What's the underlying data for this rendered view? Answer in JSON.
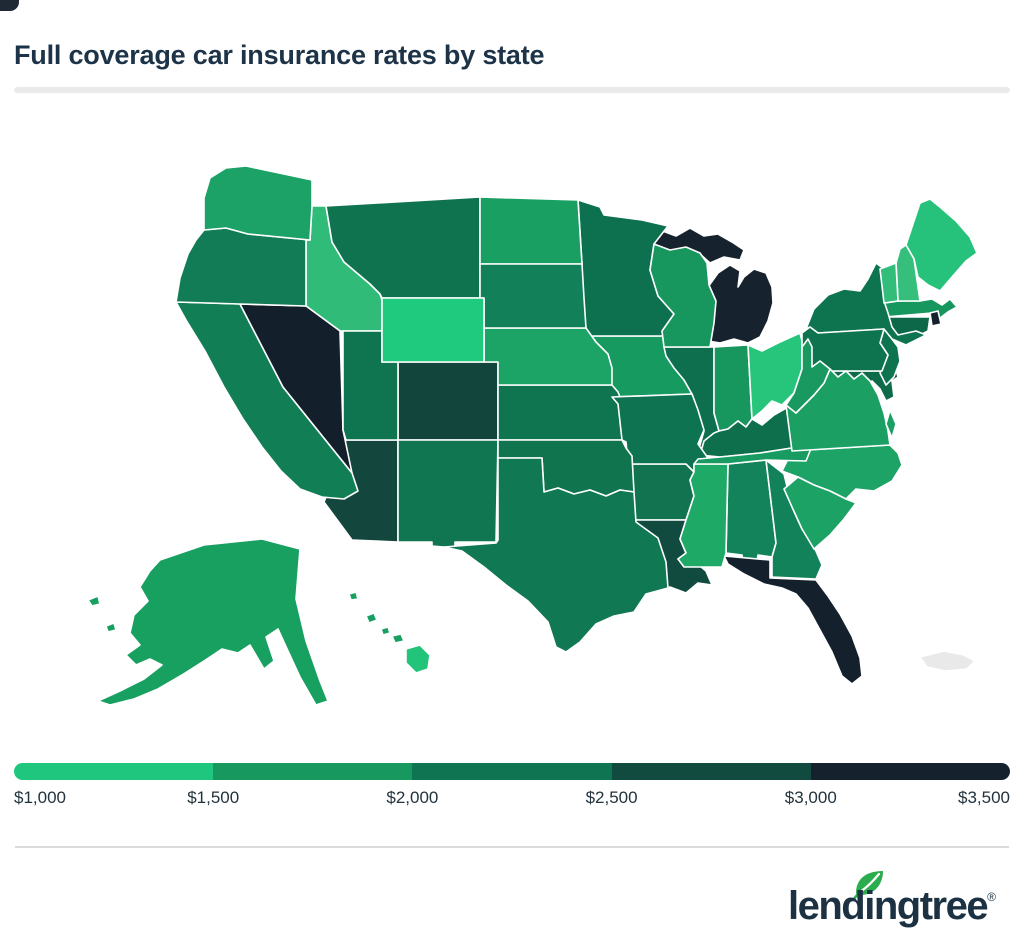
{
  "page": {
    "title": "Full coverage car insurance rates by state",
    "corner_artifact_color": "#1F2935",
    "background_color": "#FFFFFF",
    "title_color": "#1D3348",
    "divider_color": "#EAEAEA"
  },
  "logo": {
    "text": "lendingtree",
    "trademark": "®",
    "text_color": "#1C3242",
    "leaf_color": "#2BAD4F"
  },
  "chart_data": {
    "type": "choropleth",
    "title": "Full coverage car insurance rates by state",
    "region": "United States",
    "legend": {
      "tick_labels": [
        "$1,000",
        "$1,500",
        "$2,000",
        "$2,500",
        "$3,000",
        "$3,500"
      ],
      "segment_colors": [
        "#1FC77E",
        "#17985E",
        "#0F7451",
        "#114B40",
        "#15222E"
      ],
      "segment_ranges": [
        "$1,000–$1,500",
        "$1,500–$2,000",
        "$2,000–$2,500",
        "$2,500–$3,000",
        "$3,000–$3,500"
      ],
      "position": "bottom"
    },
    "other_regions": [
      {
        "name": "Puerto Rico",
        "color": "#E9E9E9",
        "estimated_range": "no data"
      }
    ],
    "hi_big_island_color": "#22C47A",
    "states": [
      {
        "abbr": "AK",
        "name": "Alaska",
        "color": "#18A061",
        "estimated_range": "$1,500–$2,000"
      },
      {
        "abbr": "AL",
        "name": "Alabama",
        "color": "#12835B",
        "estimated_range": "$2,000–$2,500"
      },
      {
        "abbr": "AR",
        "name": "Arkansas",
        "color": "#11734F",
        "estimated_range": "$2,000–$2,500"
      },
      {
        "abbr": "AZ",
        "name": "Arizona",
        "color": "#13463D",
        "estimated_range": "$2,500–$3,000"
      },
      {
        "abbr": "CA",
        "name": "California",
        "color": "#127E56",
        "estimated_range": "$2,000–$2,500"
      },
      {
        "abbr": "CO",
        "name": "Colorado",
        "color": "#12453C",
        "estimated_range": "$2,500–$3,000"
      },
      {
        "abbr": "CT",
        "name": "Connecticut",
        "color": "#0D6749",
        "estimated_range": "$2,000–$2,500"
      },
      {
        "abbr": "DE",
        "name": "Delaware",
        "color": "#0F4A3F",
        "estimated_range": "$2,500–$3,000"
      },
      {
        "abbr": "FL",
        "name": "Florida",
        "color": "#14212D",
        "estimated_range": "$3,000–$3,500"
      },
      {
        "abbr": "GA",
        "name": "Georgia",
        "color": "#11825A",
        "estimated_range": "$2,000–$2,500"
      },
      {
        "abbr": "HI",
        "name": "Hawaii",
        "color": "#18A062",
        "estimated_range": "$1,500–$2,000"
      },
      {
        "abbr": "IA",
        "name": "Iowa",
        "color": "#179A60",
        "estimated_range": "$1,500–$2,000"
      },
      {
        "abbr": "ID",
        "name": "Idaho",
        "color": "#30BC78",
        "estimated_range": "$1,000–$1,500"
      },
      {
        "abbr": "IL",
        "name": "Illinois",
        "color": "#0D6F4E",
        "estimated_range": "$2,000–$2,500"
      },
      {
        "abbr": "IN",
        "name": "Indiana",
        "color": "#17975E",
        "estimated_range": "$1,500–$2,000"
      },
      {
        "abbr": "KS",
        "name": "Kansas",
        "color": "#0F7450",
        "estimated_range": "$2,000–$2,500"
      },
      {
        "abbr": "KY",
        "name": "Kentucky",
        "color": "#0E6F4C",
        "estimated_range": "$2,000–$2,500"
      },
      {
        "abbr": "LA",
        "name": "Louisiana",
        "color": "#114B40",
        "estimated_range": "$2,500–$3,000"
      },
      {
        "abbr": "MA",
        "name": "Massachusetts",
        "color": "#17975E",
        "estimated_range": "$1,500–$2,000"
      },
      {
        "abbr": "MD",
        "name": "Maryland",
        "color": "#0D6B4A",
        "estimated_range": "$2,000–$2,500"
      },
      {
        "abbr": "ME",
        "name": "Maine",
        "color": "#26C27B",
        "estimated_range": "$1,000–$1,500"
      },
      {
        "abbr": "MI",
        "name": "Michigan",
        "color": "#16222E",
        "estimated_range": "$3,000–$3,500"
      },
      {
        "abbr": "MN",
        "name": "Minnesota",
        "color": "#0D7150",
        "estimated_range": "$2,000–$2,500"
      },
      {
        "abbr": "MO",
        "name": "Missouri",
        "color": "#0E7350",
        "estimated_range": "$2,000–$2,500"
      },
      {
        "abbr": "MS",
        "name": "Mississippi",
        "color": "#1EA967",
        "estimated_range": "$1,500–$2,000"
      },
      {
        "abbr": "MT",
        "name": "Montana",
        "color": "#0F734F",
        "estimated_range": "$2,000–$2,500"
      },
      {
        "abbr": "NC",
        "name": "North Carolina",
        "color": "#1CA365",
        "estimated_range": "$1,500–$2,000"
      },
      {
        "abbr": "ND",
        "name": "North Dakota",
        "color": "#1A9F63",
        "estimated_range": "$1,500–$2,000"
      },
      {
        "abbr": "NE",
        "name": "Nebraska",
        "color": "#1CA466",
        "estimated_range": "$1,500–$2,000"
      },
      {
        "abbr": "NH",
        "name": "New Hampshire",
        "color": "#36BE7C",
        "estimated_range": "$1,000–$1,500"
      },
      {
        "abbr": "NJ",
        "name": "New Jersey",
        "color": "#0E7450",
        "estimated_range": "$2,000–$2,500"
      },
      {
        "abbr": "NM",
        "name": "New Mexico",
        "color": "#107551",
        "estimated_range": "$2,000–$2,500"
      },
      {
        "abbr": "NV",
        "name": "Nevada",
        "color": "#131F2B",
        "estimated_range": "$3,000–$3,500"
      },
      {
        "abbr": "NY",
        "name": "New York",
        "color": "#0E7450",
        "estimated_range": "$2,000–$2,500"
      },
      {
        "abbr": "OH",
        "name": "Ohio",
        "color": "#27C57B",
        "estimated_range": "$1,000–$1,500"
      },
      {
        "abbr": "OK",
        "name": "Oklahoma",
        "color": "#10754F",
        "estimated_range": "$2,000–$2,500"
      },
      {
        "abbr": "OR",
        "name": "Oregon",
        "color": "#117C55",
        "estimated_range": "$2,000–$2,500"
      },
      {
        "abbr": "PA",
        "name": "Pennsylvania",
        "color": "#0E7450",
        "estimated_range": "$2,000–$2,500"
      },
      {
        "abbr": "RI",
        "name": "Rhode Island",
        "color": "#15222E",
        "estimated_range": "$3,000–$3,500"
      },
      {
        "abbr": "SC",
        "name": "South Carolina",
        "color": "#1CA264",
        "estimated_range": "$1,500–$2,000"
      },
      {
        "abbr": "SD",
        "name": "South Dakota",
        "color": "#12815A",
        "estimated_range": "$2,000–$2,500"
      },
      {
        "abbr": "TN",
        "name": "Tennessee",
        "color": "#189B60",
        "estimated_range": "$1,500–$2,000"
      },
      {
        "abbr": "TX",
        "name": "Texas",
        "color": "#107853",
        "estimated_range": "$2,000–$2,500"
      },
      {
        "abbr": "UT",
        "name": "Utah",
        "color": "#0F7450",
        "estimated_range": "$2,000–$2,500"
      },
      {
        "abbr": "VA",
        "name": "Virginia",
        "color": "#1B9F63",
        "estimated_range": "$1,500–$2,000"
      },
      {
        "abbr": "VT",
        "name": "Vermont",
        "color": "#33BD7A",
        "estimated_range": "$1,000–$1,500"
      },
      {
        "abbr": "WA",
        "name": "Washington",
        "color": "#1CA167",
        "estimated_range": "$1,500–$2,000"
      },
      {
        "abbr": "WI",
        "name": "Wisconsin",
        "color": "#17975E",
        "estimated_range": "$1,500–$2,000"
      },
      {
        "abbr": "WV",
        "name": "West Virginia",
        "color": "#19995F",
        "estimated_range": "$1,500–$2,000"
      },
      {
        "abbr": "WY",
        "name": "Wyoming",
        "color": "#1FC97E",
        "estimated_range": "$1,000–$1,500"
      }
    ]
  }
}
